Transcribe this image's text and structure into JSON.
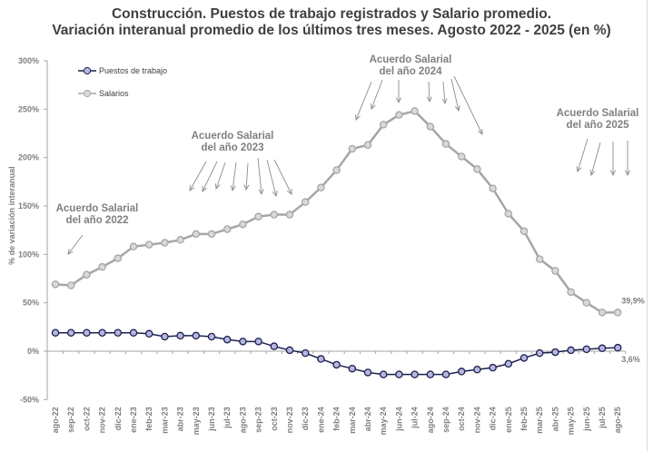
{
  "title_line1": "Construcción. Puestos de trabajo registrados y Salario promedio.",
  "title_line2": "Variación interanual promedio de los últimos tres meses. Agosto 2022 - 2025 (en %)",
  "chart_data": {
    "type": "line",
    "title": "Construcción. Puestos de trabajo registrados y Salario promedio. Variación interanual promedio de los últimos tres meses. Agosto 2022 - 2025 (en %)",
    "ylabel": "% de variación interanual",
    "ylim": [
      -50,
      300
    ],
    "yticks": [
      "300%",
      "250%",
      "200%",
      "150%",
      "100%",
      "50%",
      "0%",
      "-50%"
    ],
    "grid": false,
    "legend": "top-left",
    "categories": [
      "ago-22",
      "sep-22",
      "oct-22",
      "nov-22",
      "dic-22",
      "ene-23",
      "feb-23",
      "mar-23",
      "abr-23",
      "may-23",
      "jun-23",
      "jul-23",
      "ago-23",
      "sep-23",
      "oct-23",
      "nov-23",
      "dic-23",
      "ene-24",
      "feb-24",
      "mar-24",
      "abr-24",
      "may-24",
      "jun-24",
      "jul-24",
      "ago-24",
      "sep-24",
      "oct-24",
      "nov-24",
      "dic-24",
      "ene-25",
      "feb-25",
      "mar-25",
      "abr-25",
      "may-25",
      "jun-25",
      "jul-25",
      "ago-25"
    ],
    "series": [
      {
        "name": "Puestos de trabajo",
        "color": "#1f1f4f",
        "marker_fill": "#b4b8e0",
        "values": [
          19,
          19,
          19,
          19,
          19,
          19,
          18,
          15,
          16,
          16,
          15,
          12,
          10,
          10,
          5,
          1,
          -2,
          -8,
          -14,
          -18,
          -22,
          -24,
          -24,
          -24,
          -24,
          -24,
          -21,
          -19,
          -17,
          -13,
          -7,
          -2,
          -1,
          1,
          2,
          3,
          3.6
        ],
        "end_label": "3,6%"
      },
      {
        "name": "Salarios",
        "color": "#a6a6a6",
        "marker_fill": "#d9d9d9",
        "values": [
          69,
          68,
          79,
          87,
          96,
          108,
          110,
          112,
          115,
          121,
          121,
          126,
          131,
          139,
          141,
          141,
          154,
          169,
          187,
          209,
          213,
          234,
          244,
          248,
          232,
          214,
          201,
          188,
          168,
          142,
          124,
          95,
          83,
          61,
          50,
          40,
          39.9
        ],
        "end_label": "39,9%"
      }
    ],
    "annotations": [
      {
        "text_line1": "Acuerdo Salarial",
        "text_line2": "del año 2022"
      },
      {
        "text_line1": "Acuerdo Salarial",
        "text_line2": "del año 2023"
      },
      {
        "text_line1": "Acuerdo Salarial",
        "text_line2": "del año 2024"
      },
      {
        "text_line1": "Acuerdo Salarial",
        "text_line2": "del año 2025"
      }
    ]
  }
}
